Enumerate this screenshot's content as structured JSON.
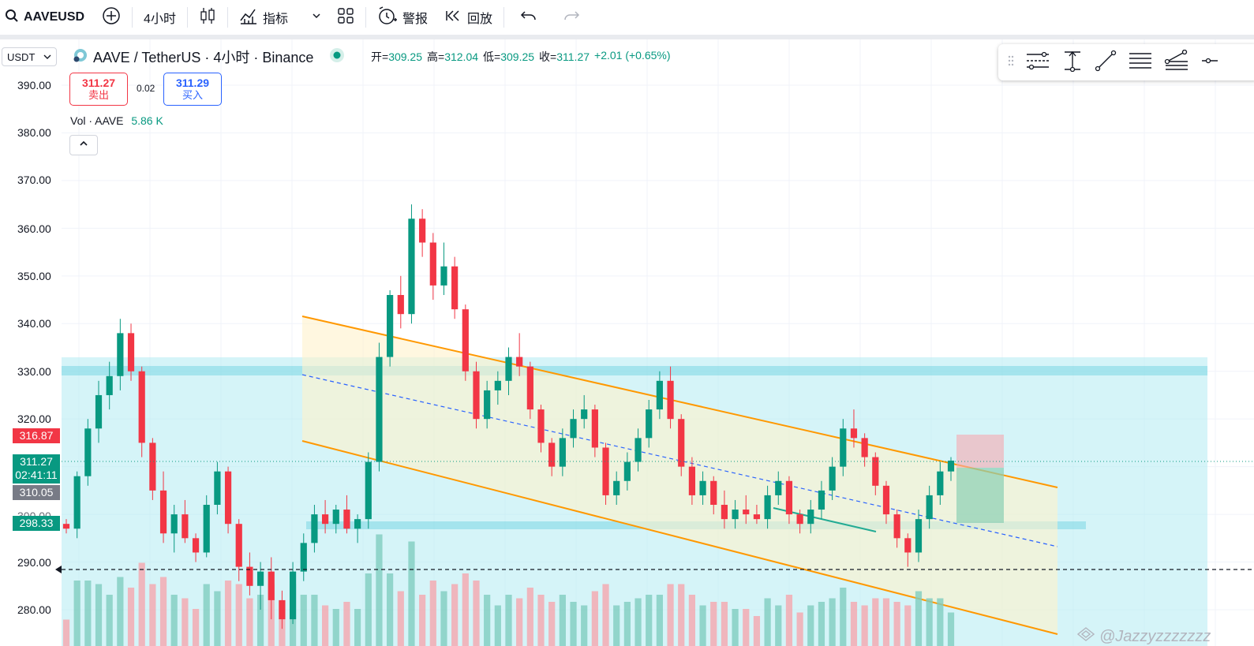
{
  "toolbar": {
    "symbol": "AAVEUSD",
    "interval": "4小时",
    "indicators_label": "指标",
    "alert_label": "警报",
    "replay_label": "回放"
  },
  "currency_select": "USDT",
  "legend": {
    "title": "AAVE / TetherUS · 4小时 · Binance",
    "open_label": "开=",
    "open": "309.25",
    "high_label": "高=",
    "high": "312.04",
    "low_label": "低=",
    "low": "309.25",
    "close_label": "收=",
    "close": "311.27",
    "change": "+2.01 (+0.65%)"
  },
  "trade": {
    "sell_price": "311.27",
    "sell_label": "卖出",
    "spread": "0.02",
    "buy_price": "311.29",
    "buy_label": "买入"
  },
  "volume": {
    "label": "Vol · AAVE",
    "value": "5.86 K"
  },
  "price_axis": {
    "ticks": [
      "390.00",
      "380.00",
      "370.00",
      "360.00",
      "350.00",
      "340.00",
      "330.00",
      "320.00",
      "290.00",
      "280.00"
    ],
    "label_high": "316.87",
    "label_last": "311.27",
    "label_countdown": "02:41:11",
    "label_grey": "310.05",
    "label_support": "298.33",
    "label_partial": "300.00"
  },
  "watermark": "@Jazzyzzzzzzz",
  "colors": {
    "up": "#089981",
    "down": "#f23645",
    "channel": "#ff9800",
    "zone": "#b3ebf2",
    "midline": "#2962ff"
  },
  "chart_data": {
    "type": "candlestick",
    "ylim": [
      275,
      393
    ],
    "ohlc_sample": [
      [
        298,
        299,
        296,
        297
      ],
      [
        297,
        309,
        295,
        308
      ],
      [
        308,
        320,
        306,
        318
      ],
      [
        318,
        328,
        315,
        325
      ],
      [
        325,
        332,
        322,
        329
      ],
      [
        329,
        341,
        326,
        338
      ],
      [
        338,
        340,
        328,
        330
      ],
      [
        330,
        331,
        312,
        315
      ],
      [
        315,
        316,
        303,
        305
      ],
      [
        305,
        309,
        294,
        296
      ],
      [
        296,
        302,
        292,
        300
      ],
      [
        300,
        303,
        294,
        295
      ],
      [
        295,
        296,
        290,
        292
      ],
      [
        292,
        304,
        291,
        302
      ],
      [
        302,
        311,
        300,
        309
      ],
      [
        309,
        310,
        296,
        298
      ],
      [
        298,
        299,
        286,
        289
      ],
      [
        289,
        292,
        283,
        285
      ],
      [
        285,
        290,
        280,
        288
      ],
      [
        288,
        291,
        278,
        282
      ],
      [
        282,
        284,
        276,
        278
      ],
      [
        278,
        290,
        277,
        288
      ],
      [
        288,
        296,
        286,
        294
      ],
      [
        294,
        302,
        292,
        300
      ],
      [
        300,
        303,
        296,
        298
      ],
      [
        298,
        302,
        296,
        301
      ],
      [
        301,
        304,
        296,
        297
      ],
      [
        297,
        300,
        294,
        299
      ],
      [
        299,
        313,
        297,
        311
      ],
      [
        311,
        336,
        309,
        333
      ],
      [
        333,
        347,
        331,
        346
      ],
      [
        346,
        350,
        339,
        342
      ],
      [
        342,
        365,
        340,
        362
      ],
      [
        362,
        364,
        354,
        357
      ],
      [
        357,
        359,
        345,
        348
      ],
      [
        348,
        357,
        346,
        352
      ],
      [
        352,
        354,
        341,
        343
      ],
      [
        343,
        344,
        328,
        330
      ],
      [
        330,
        332,
        318,
        320
      ],
      [
        320,
        328,
        318,
        326
      ],
      [
        326,
        330,
        323,
        328
      ],
      [
        328,
        335,
        325,
        333
      ],
      [
        333,
        338,
        329,
        331
      ],
      [
        331,
        332,
        320,
        322
      ],
      [
        322,
        323,
        313,
        315
      ],
      [
        315,
        316,
        308,
        310
      ],
      [
        310,
        318,
        308,
        316
      ],
      [
        316,
        322,
        314,
        320
      ],
      [
        320,
        325,
        318,
        322
      ],
      [
        322,
        323,
        312,
        314
      ],
      [
        314,
        315,
        302,
        304
      ],
      [
        304,
        309,
        302,
        307
      ],
      [
        307,
        313,
        305,
        311
      ],
      [
        311,
        318,
        309,
        316
      ],
      [
        316,
        324,
        314,
        322
      ],
      [
        322,
        330,
        320,
        328
      ],
      [
        328,
        331,
        318,
        320
      ],
      [
        320,
        321,
        308,
        310
      ],
      [
        310,
        312,
        302,
        304
      ],
      [
        304,
        309,
        302,
        307
      ],
      [
        307,
        308,
        300,
        302
      ],
      [
        302,
        305,
        297,
        299
      ],
      [
        299,
        303,
        297,
        301
      ],
      [
        301,
        304,
        298,
        300
      ],
      [
        300,
        302,
        298,
        299
      ],
      [
        299,
        306,
        297,
        304
      ],
      [
        304,
        309,
        302,
        307
      ],
      [
        307,
        308,
        298,
        300
      ],
      [
        300,
        301,
        296,
        298
      ],
      [
        298,
        303,
        296,
        301
      ],
      [
        301,
        307,
        299,
        305
      ],
      [
        305,
        312,
        303,
        310
      ],
      [
        310,
        320,
        308,
        318
      ],
      [
        318,
        322,
        314,
        316
      ],
      [
        316,
        317,
        310,
        312
      ],
      [
        312,
        313,
        304,
        306
      ],
      [
        306,
        307,
        298,
        300
      ],
      [
        300,
        301,
        293,
        295
      ],
      [
        295,
        296,
        289,
        292
      ],
      [
        292,
        301,
        290,
        299
      ],
      [
        299,
        306,
        297,
        304
      ],
      [
        304,
        311,
        302,
        309
      ],
      [
        309,
        312,
        307,
        311.27
      ]
    ],
    "support_levels": [
      330,
      298.33
    ],
    "dashed_line": 289.5
  }
}
